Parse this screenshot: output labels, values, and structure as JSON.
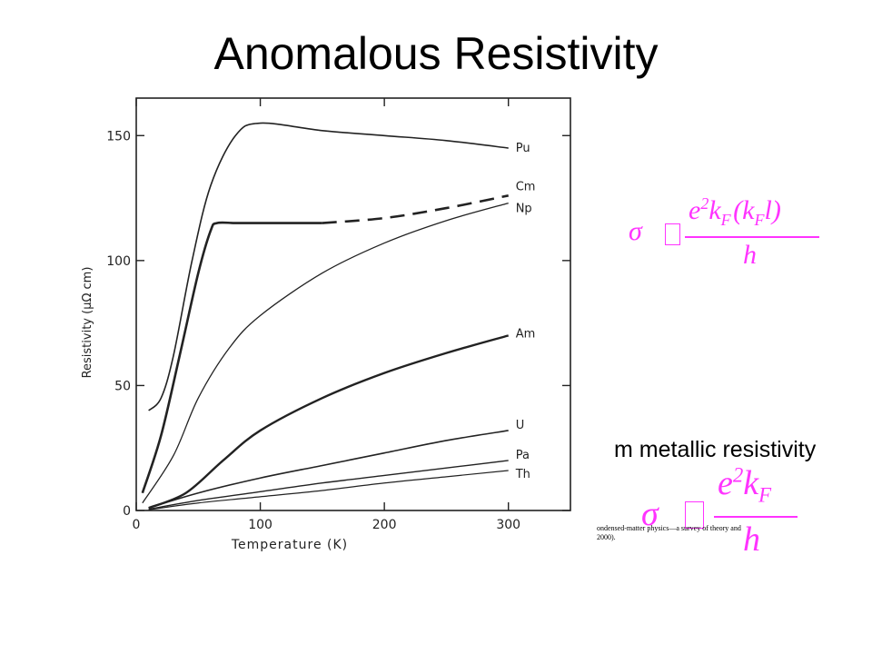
{
  "slide": {
    "title": "Anomalous Resistivity",
    "snippet_text": "m metallic resistivity",
    "citation_line1": "ondensed-matter physics—a survey of theory and",
    "citation_line2": "2000)."
  },
  "formulas": {
    "color": "#ff33ff",
    "anomalous": {
      "lhs": "σ",
      "rel": "∝",
      "num_base": "e",
      "num_sup": "2",
      "num_k": "k",
      "num_sub": "F",
      "num_paren": "(k",
      "num_sub2": "F",
      "num_l": "l)",
      "den": "h"
    },
    "normal": {
      "lhs": "σ",
      "rel": "∝",
      "num_base": "e",
      "num_sup": "2",
      "num_k": "k",
      "num_sub": "F",
      "den": "h"
    }
  },
  "chart_data": {
    "type": "line",
    "title": "",
    "xlabel": "Temperature (K)",
    "ylabel": "Resistivity (μΩ cm)",
    "xlim": [
      0,
      350
    ],
    "ylim": [
      0,
      165
    ],
    "xticks": [
      0,
      100,
      200,
      300
    ],
    "yticks": [
      0,
      50,
      100,
      150
    ],
    "xtick_labels": [
      "0",
      "100",
      "200",
      "300"
    ],
    "ytick_labels": [
      "0",
      "50",
      "100",
      "150"
    ],
    "grid": false,
    "series": [
      {
        "name": "Pu",
        "x": [
          10,
          20,
          30,
          45,
          60,
          80,
          100,
          150,
          200,
          250,
          300
        ],
        "y": [
          40,
          45,
          62,
          100,
          130,
          150,
          155,
          152,
          150,
          148,
          145
        ]
      },
      {
        "name": "Cm",
        "x": [
          5,
          20,
          35,
          50,
          60,
          65,
          80,
          100,
          150
        ],
        "y": [
          7,
          30,
          62,
          95,
          112,
          115,
          115,
          115,
          115
        ],
        "dashed_from_x": 160,
        "dashed_x": [
          150,
          200,
          250,
          300
        ],
        "dashed_y": [
          115,
          117,
          121,
          126
        ]
      },
      {
        "name": "Np",
        "x": [
          5,
          30,
          50,
          75,
          100,
          150,
          200,
          250,
          300
        ],
        "y": [
          3,
          22,
          45,
          65,
          78,
          95,
          107,
          116,
          123
        ]
      },
      {
        "name": "Am",
        "x": [
          10,
          40,
          70,
          100,
          150,
          200,
          250,
          300
        ],
        "y": [
          1,
          7,
          20,
          32,
          45,
          55,
          63,
          70
        ]
      },
      {
        "name": "U",
        "x": [
          10,
          50,
          100,
          150,
          200,
          250,
          300
        ],
        "y": [
          1,
          7,
          13,
          18,
          23,
          28,
          32
        ]
      },
      {
        "name": "Pa",
        "x": [
          10,
          50,
          100,
          150,
          200,
          250,
          300
        ],
        "y": [
          0.5,
          4,
          7.5,
          11,
          14,
          17,
          20
        ]
      },
      {
        "name": "Th",
        "x": [
          10,
          50,
          100,
          150,
          200,
          250,
          300
        ],
        "y": [
          0.3,
          3,
          5.5,
          8,
          11,
          13.5,
          16
        ]
      }
    ]
  }
}
